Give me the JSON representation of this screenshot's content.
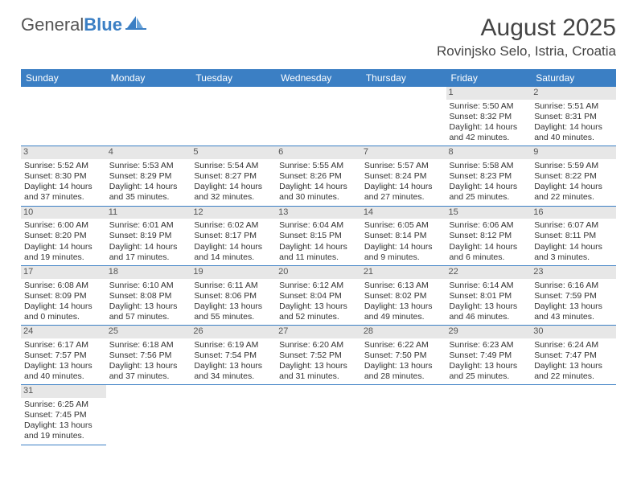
{
  "logo": {
    "part1": "General",
    "part2": "Blue"
  },
  "title": {
    "month": "August 2025",
    "location": "Rovinjsko Selo, Istria, Croatia"
  },
  "weekdays": [
    "Sunday",
    "Monday",
    "Tuesday",
    "Wednesday",
    "Thursday",
    "Friday",
    "Saturday"
  ],
  "colors": {
    "headerBg": "#3b7fc4",
    "dayBg": "#e7e7e7",
    "text": "#333333"
  },
  "days": [
    {
      "n": "1",
      "r": "Sunrise: 5:50 AM",
      "s": "Sunset: 8:32 PM",
      "d": "Daylight: 14 hours and 42 minutes."
    },
    {
      "n": "2",
      "r": "Sunrise: 5:51 AM",
      "s": "Sunset: 8:31 PM",
      "d": "Daylight: 14 hours and 40 minutes."
    },
    {
      "n": "3",
      "r": "Sunrise: 5:52 AM",
      "s": "Sunset: 8:30 PM",
      "d": "Daylight: 14 hours and 37 minutes."
    },
    {
      "n": "4",
      "r": "Sunrise: 5:53 AM",
      "s": "Sunset: 8:29 PM",
      "d": "Daylight: 14 hours and 35 minutes."
    },
    {
      "n": "5",
      "r": "Sunrise: 5:54 AM",
      "s": "Sunset: 8:27 PM",
      "d": "Daylight: 14 hours and 32 minutes."
    },
    {
      "n": "6",
      "r": "Sunrise: 5:55 AM",
      "s": "Sunset: 8:26 PM",
      "d": "Daylight: 14 hours and 30 minutes."
    },
    {
      "n": "7",
      "r": "Sunrise: 5:57 AM",
      "s": "Sunset: 8:24 PM",
      "d": "Daylight: 14 hours and 27 minutes."
    },
    {
      "n": "8",
      "r": "Sunrise: 5:58 AM",
      "s": "Sunset: 8:23 PM",
      "d": "Daylight: 14 hours and 25 minutes."
    },
    {
      "n": "9",
      "r": "Sunrise: 5:59 AM",
      "s": "Sunset: 8:22 PM",
      "d": "Daylight: 14 hours and 22 minutes."
    },
    {
      "n": "10",
      "r": "Sunrise: 6:00 AM",
      "s": "Sunset: 8:20 PM",
      "d": "Daylight: 14 hours and 19 minutes."
    },
    {
      "n": "11",
      "r": "Sunrise: 6:01 AM",
      "s": "Sunset: 8:19 PM",
      "d": "Daylight: 14 hours and 17 minutes."
    },
    {
      "n": "12",
      "r": "Sunrise: 6:02 AM",
      "s": "Sunset: 8:17 PM",
      "d": "Daylight: 14 hours and 14 minutes."
    },
    {
      "n": "13",
      "r": "Sunrise: 6:04 AM",
      "s": "Sunset: 8:15 PM",
      "d": "Daylight: 14 hours and 11 minutes."
    },
    {
      "n": "14",
      "r": "Sunrise: 6:05 AM",
      "s": "Sunset: 8:14 PM",
      "d": "Daylight: 14 hours and 9 minutes."
    },
    {
      "n": "15",
      "r": "Sunrise: 6:06 AM",
      "s": "Sunset: 8:12 PM",
      "d": "Daylight: 14 hours and 6 minutes."
    },
    {
      "n": "16",
      "r": "Sunrise: 6:07 AM",
      "s": "Sunset: 8:11 PM",
      "d": "Daylight: 14 hours and 3 minutes."
    },
    {
      "n": "17",
      "r": "Sunrise: 6:08 AM",
      "s": "Sunset: 8:09 PM",
      "d": "Daylight: 14 hours and 0 minutes."
    },
    {
      "n": "18",
      "r": "Sunrise: 6:10 AM",
      "s": "Sunset: 8:08 PM",
      "d": "Daylight: 13 hours and 57 minutes."
    },
    {
      "n": "19",
      "r": "Sunrise: 6:11 AM",
      "s": "Sunset: 8:06 PM",
      "d": "Daylight: 13 hours and 55 minutes."
    },
    {
      "n": "20",
      "r": "Sunrise: 6:12 AM",
      "s": "Sunset: 8:04 PM",
      "d": "Daylight: 13 hours and 52 minutes."
    },
    {
      "n": "21",
      "r": "Sunrise: 6:13 AM",
      "s": "Sunset: 8:02 PM",
      "d": "Daylight: 13 hours and 49 minutes."
    },
    {
      "n": "22",
      "r": "Sunrise: 6:14 AM",
      "s": "Sunset: 8:01 PM",
      "d": "Daylight: 13 hours and 46 minutes."
    },
    {
      "n": "23",
      "r": "Sunrise: 6:16 AM",
      "s": "Sunset: 7:59 PM",
      "d": "Daylight: 13 hours and 43 minutes."
    },
    {
      "n": "24",
      "r": "Sunrise: 6:17 AM",
      "s": "Sunset: 7:57 PM",
      "d": "Daylight: 13 hours and 40 minutes."
    },
    {
      "n": "25",
      "r": "Sunrise: 6:18 AM",
      "s": "Sunset: 7:56 PM",
      "d": "Daylight: 13 hours and 37 minutes."
    },
    {
      "n": "26",
      "r": "Sunrise: 6:19 AM",
      "s": "Sunset: 7:54 PM",
      "d": "Daylight: 13 hours and 34 minutes."
    },
    {
      "n": "27",
      "r": "Sunrise: 6:20 AM",
      "s": "Sunset: 7:52 PM",
      "d": "Daylight: 13 hours and 31 minutes."
    },
    {
      "n": "28",
      "r": "Sunrise: 6:22 AM",
      "s": "Sunset: 7:50 PM",
      "d": "Daylight: 13 hours and 28 minutes."
    },
    {
      "n": "29",
      "r": "Sunrise: 6:23 AM",
      "s": "Sunset: 7:49 PM",
      "d": "Daylight: 13 hours and 25 minutes."
    },
    {
      "n": "30",
      "r": "Sunrise: 6:24 AM",
      "s": "Sunset: 7:47 PM",
      "d": "Daylight: 13 hours and 22 minutes."
    },
    {
      "n": "31",
      "r": "Sunrise: 6:25 AM",
      "s": "Sunset: 7:45 PM",
      "d": "Daylight: 13 hours and 19 minutes."
    }
  ],
  "startWeekday": 5
}
